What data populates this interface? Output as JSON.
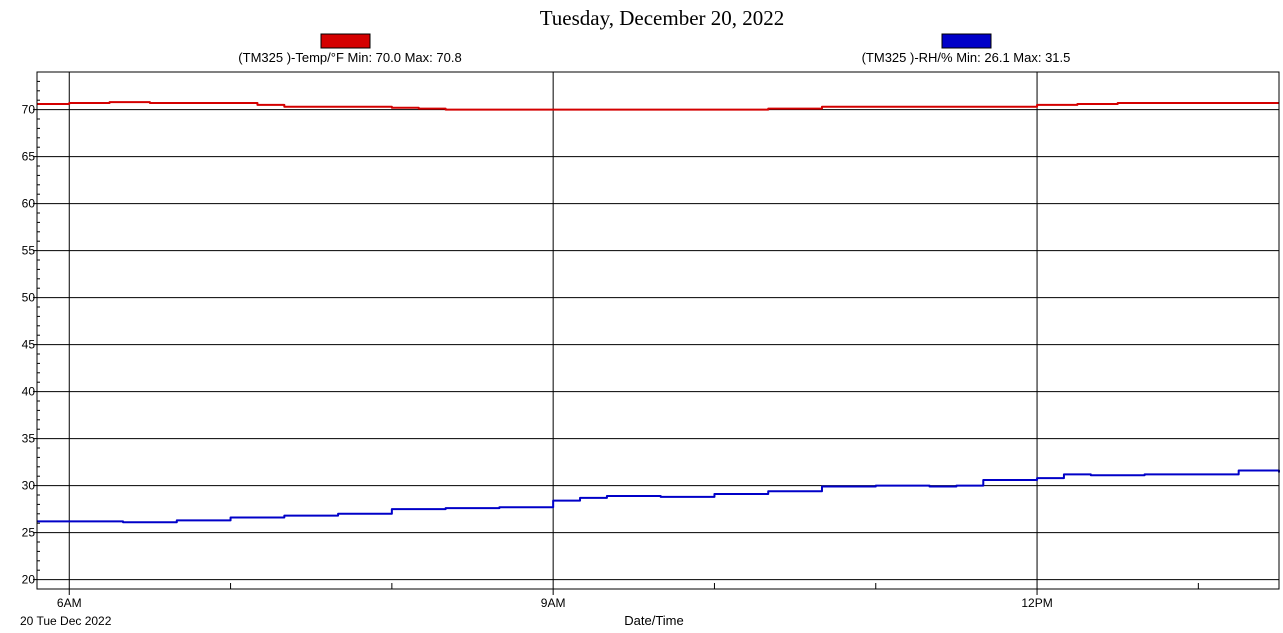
{
  "chart_data": {
    "type": "line",
    "title": "Tuesday, December 20, 2022",
    "xlabel": "Date/Time",
    "x_date_label": "20 Tue Dec 2022",
    "ylabel": "",
    "ylim": [
      19,
      74
    ],
    "xlim": [
      "05:48",
      "13:30"
    ],
    "y_ticks": [
      20,
      25,
      30,
      35,
      40,
      45,
      50,
      55,
      60,
      65,
      70
    ],
    "x_ticks": [
      {
        "time": "06:00",
        "label": "6AM"
      },
      {
        "time": "09:00",
        "label": "9AM"
      },
      {
        "time": "12:00",
        "label": "12PM"
      }
    ],
    "x_minor_ticks": [
      "07:00",
      "08:00",
      "10:00",
      "11:00",
      "13:00"
    ],
    "grid": true,
    "legend_placement": "top",
    "series": [
      {
        "name": "(TM325    )-Temp/°F Min: 70.0 Max: 70.8",
        "color": "#d40000",
        "x": [
          "05:48",
          "06:00",
          "06:15",
          "06:30",
          "06:45",
          "07:00",
          "07:10",
          "07:20",
          "07:40",
          "08:00",
          "08:10",
          "08:20",
          "08:40",
          "09:00",
          "09:30",
          "10:00",
          "10:20",
          "10:40",
          "11:00",
          "11:30",
          "11:50",
          "12:00",
          "12:15",
          "12:30",
          "13:00",
          "13:30"
        ],
        "y": [
          70.6,
          70.7,
          70.8,
          70.7,
          70.7,
          70.7,
          70.5,
          70.3,
          70.3,
          70.2,
          70.1,
          70.0,
          70.0,
          70.0,
          70.0,
          70.0,
          70.1,
          70.3,
          70.3,
          70.3,
          70.3,
          70.5,
          70.6,
          70.7,
          70.7,
          70.7
        ]
      },
      {
        "name": "(TM325    )-RH/% Min: 26.1 Max: 31.5",
        "color": "#0000c8",
        "x": [
          "05:48",
          "06:00",
          "06:20",
          "06:40",
          "07:00",
          "07:20",
          "07:40",
          "08:00",
          "08:20",
          "08:40",
          "09:00",
          "09:10",
          "09:20",
          "09:40",
          "10:00",
          "10:20",
          "10:40",
          "11:00",
          "11:20",
          "11:30",
          "11:40",
          "12:00",
          "12:10",
          "12:20",
          "12:40",
          "13:00",
          "13:15",
          "13:30"
        ],
        "y": [
          26.2,
          26.2,
          26.1,
          26.3,
          26.6,
          26.8,
          27.0,
          27.5,
          27.6,
          27.7,
          28.4,
          28.7,
          28.9,
          28.8,
          29.1,
          29.4,
          29.9,
          30.0,
          29.9,
          30.0,
          30.6,
          30.8,
          31.2,
          31.1,
          31.2,
          31.2,
          31.6,
          31.4
        ]
      }
    ]
  }
}
